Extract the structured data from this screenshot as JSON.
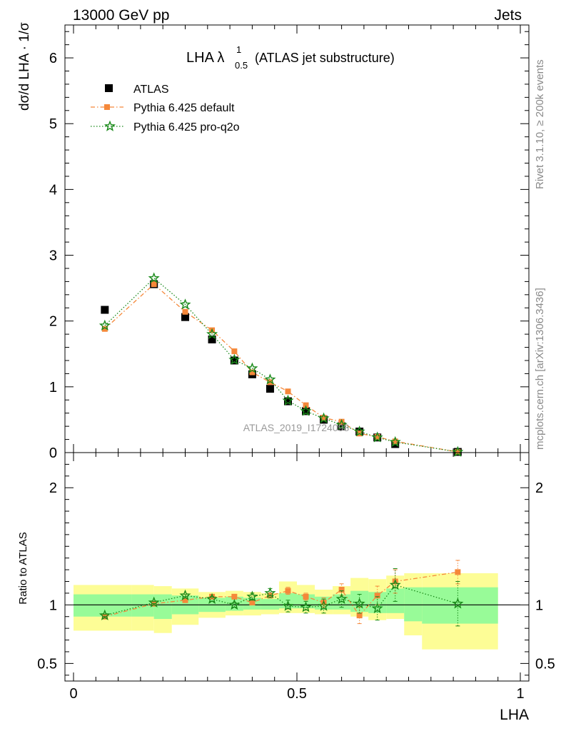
{
  "header": {
    "left": "13000 GeV pp",
    "right": "Jets"
  },
  "side_labels": {
    "top": "Rivet 3.1.10, ≥ 200k events",
    "bottom": "mcplots.cern.ch [arXiv:1306.3436]"
  },
  "watermark": "ATLAS_2019_I1724098",
  "colors": {
    "atlas": "#000000",
    "default": "#f5883a",
    "proq2o": "#1a8a1a",
    "band_yellow": "#fdfd96",
    "band_green": "#98fb98"
  },
  "chart_data": [
    {
      "type": "scatter",
      "panel": "main",
      "title_main": "LHA λ",
      "title_sub": "0.5",
      "title_sup": "1",
      "title_rest": "(ATLAS jet substructure)",
      "ylabel": "dσ/d LHA · 1/σ",
      "xlim": [
        0,
        1
      ],
      "ylim": [
        0,
        6.5
      ],
      "yticks": [
        0,
        1,
        2,
        3,
        4,
        5,
        6
      ],
      "legend_placement": "top-left",
      "series": [
        {
          "name": "ATLAS",
          "x": [
            0.07,
            0.18,
            0.25,
            0.31,
            0.36,
            0.4,
            0.44,
            0.48,
            0.52,
            0.56,
            0.6,
            0.64,
            0.68,
            0.72,
            0.86
          ],
          "y": [
            2.17,
            2.56,
            2.06,
            1.72,
            1.4,
            1.19,
            0.97,
            0.78,
            0.63,
            0.5,
            0.4,
            0.32,
            0.23,
            0.13,
            0.01
          ]
        },
        {
          "name": "Pythia 6.425 default",
          "x": [
            0.07,
            0.18,
            0.25,
            0.31,
            0.36,
            0.4,
            0.44,
            0.48,
            0.52,
            0.56,
            0.6,
            0.64,
            0.68,
            0.72,
            0.86
          ],
          "y": [
            1.88,
            2.56,
            2.14,
            1.86,
            1.54,
            1.22,
            1.07,
            0.93,
            0.72,
            0.53,
            0.47,
            0.29,
            0.24,
            0.17,
            0.01
          ]
        },
        {
          "name": "Pythia 6.425 pro-q2o",
          "x": [
            0.07,
            0.18,
            0.25,
            0.31,
            0.36,
            0.4,
            0.44,
            0.48,
            0.52,
            0.56,
            0.6,
            0.64,
            0.68,
            0.72,
            0.86
          ],
          "y": [
            1.93,
            2.65,
            2.25,
            1.8,
            1.41,
            1.28,
            1.11,
            0.79,
            0.63,
            0.52,
            0.42,
            0.32,
            0.23,
            0.16,
            0.01
          ]
        }
      ]
    },
    {
      "type": "scatter",
      "panel": "ratio",
      "ylabel": "Ratio to ATLAS",
      "xlabel": "LHA",
      "xlim": [
        0,
        1
      ],
      "ylim": [
        0.35,
        2.3
      ],
      "yticks": [
        0.5,
        1,
        2
      ],
      "xticks": [
        0,
        0.5,
        1
      ],
      "reference": 1,
      "bands": {
        "edges": [
          0,
          0.13,
          0.18,
          0.22,
          0.28,
          0.34,
          0.38,
          0.42,
          0.46,
          0.5,
          0.54,
          0.58,
          0.62,
          0.66,
          0.7,
          0.74,
          0.78,
          0.95
        ],
        "yellow_low": [
          0.78,
          0.78,
          0.76,
          0.83,
          0.89,
          0.91,
          0.91,
          0.92,
          0.93,
          0.93,
          0.92,
          0.92,
          0.9,
          0.87,
          0.88,
          0.74,
          0.62
        ],
        "yellow_high": [
          1.17,
          1.17,
          1.16,
          1.14,
          1.11,
          1.12,
          1.11,
          1.1,
          1.2,
          1.17,
          1.13,
          1.16,
          1.23,
          1.22,
          1.25,
          1.27,
          1.27
        ],
        "green_low": [
          0.9,
          0.9,
          0.88,
          0.92,
          0.94,
          0.95,
          0.96,
          0.96,
          0.97,
          0.97,
          0.96,
          0.96,
          0.94,
          0.93,
          0.93,
          0.86,
          0.84
        ],
        "green_high": [
          1.09,
          1.09,
          1.09,
          1.08,
          1.06,
          1.07,
          1.06,
          1.05,
          1.1,
          1.09,
          1.07,
          1.09,
          1.12,
          1.11,
          1.14,
          1.15,
          1.15
        ]
      },
      "series": [
        {
          "name": "Pythia 6.425 default",
          "x": [
            0.07,
            0.18,
            0.25,
            0.31,
            0.36,
            0.4,
            0.44,
            0.48,
            0.52,
            0.56,
            0.6,
            0.64,
            0.68,
            0.72,
            0.86
          ],
          "y": [
            0.9,
            1.01,
            1.04,
            1.07,
            1.07,
            1.02,
            1.08,
            1.12,
            1.07,
            1.02,
            1.13,
            0.91,
            1.08,
            1.2,
            1.28
          ],
          "err": [
            0.01,
            0.01,
            0.01,
            0.01,
            0.02,
            0.02,
            0.02,
            0.03,
            0.03,
            0.04,
            0.05,
            0.07,
            0.08,
            0.1,
            0.1
          ]
        },
        {
          "name": "Pythia 6.425 pro-q2o",
          "x": [
            0.07,
            0.18,
            0.25,
            0.31,
            0.36,
            0.4,
            0.44,
            0.48,
            0.52,
            0.56,
            0.6,
            0.64,
            0.68,
            0.72,
            0.86
          ],
          "y": [
            0.91,
            1.02,
            1.08,
            1.05,
            1.0,
            1.07,
            1.1,
            0.99,
            0.98,
            0.99,
            1.05,
            1.01,
            0.97,
            1.17,
            1.01
          ],
          "err": [
            0.01,
            0.01,
            0.01,
            0.02,
            0.02,
            0.03,
            0.04,
            0.05,
            0.05,
            0.06,
            0.07,
            0.08,
            0.1,
            0.14,
            0.19
          ]
        }
      ]
    }
  ]
}
